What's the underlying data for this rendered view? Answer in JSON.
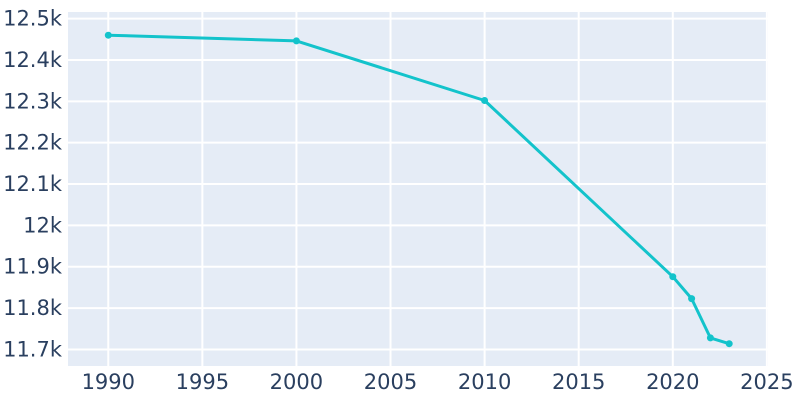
{
  "chart_data": {
    "type": "line",
    "title": "",
    "xlabel": "",
    "ylabel": "",
    "x": [
      1990,
      2000,
      2010,
      2020,
      2021,
      2022,
      2023
    ],
    "y": [
      12460,
      12446,
      12302,
      11876,
      11823,
      11728,
      11714
    ],
    "xlim": [
      1987.86,
      2025.06
    ],
    "ylim": [
      11660,
      12516
    ],
    "x_ticks": [
      1990,
      1995,
      2000,
      2005,
      2010,
      2015,
      2020,
      2025
    ],
    "x_tick_labels": [
      "1990",
      "1995",
      "2000",
      "2005",
      "2010",
      "2015",
      "2020",
      "2025"
    ],
    "y_ticks": [
      11700,
      11800,
      11900,
      12000,
      12100,
      12200,
      12300,
      12400,
      12500
    ],
    "y_tick_labels": [
      "11.7k",
      "11.8k",
      "11.9k",
      "12k",
      "12.1k",
      "12.2k",
      "12.3k",
      "12.4k",
      "12.5k"
    ],
    "grid": true,
    "legend": false,
    "marker_radius": 3.5,
    "line_width": 3,
    "tick_font_size": 21,
    "colors": {
      "line": "#13C3CB",
      "plot_background": "#E5ECF6",
      "paper_background": "#FFFFFF",
      "gridline": "#FFFFFF",
      "tick_label": "#2A3F5F"
    }
  }
}
